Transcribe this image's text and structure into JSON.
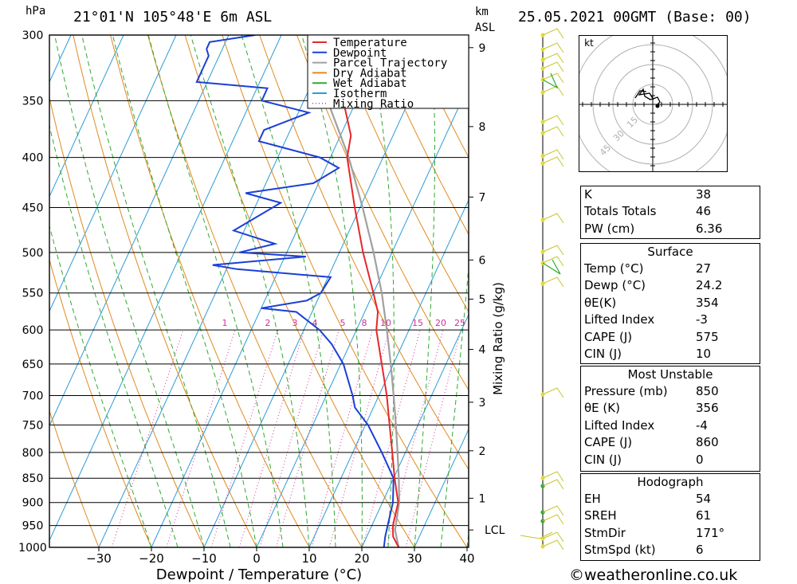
{
  "header": {
    "unit_hpa": "hPa",
    "location": "21°01'N 105°48'E 6m ASL",
    "unit_km": "km",
    "unit_asl": "ASL",
    "datetime": "25.05.2021 00GMT (Base: 00)"
  },
  "axes": {
    "xlabel": "Dewpoint / Temperature (°C)",
    "right_label": "Mixing Ratio (g/kg)",
    "pressure_ticks": [
      "300",
      "350",
      "400",
      "450",
      "500",
      "550",
      "600",
      "650",
      "700",
      "750",
      "800",
      "850",
      "900",
      "950",
      "1000"
    ],
    "temp_ticks": [
      "−30",
      "−20",
      "−10",
      "0",
      "10",
      "20",
      "30",
      "40"
    ],
    "km_ticks": [
      "9",
      "8",
      "7",
      "6",
      "5",
      "4",
      "3",
      "2",
      "1"
    ],
    "lcl_label": "LCL",
    "mixing_ratio_labels": [
      "1",
      "2",
      "3",
      "4",
      "5",
      "8",
      "10",
      "15",
      "20",
      "25"
    ]
  },
  "legend": [
    {
      "label": "Temperature",
      "color": "#e8262a",
      "style": "solid"
    },
    {
      "label": "Dewpoint",
      "color": "#1b3fd6",
      "style": "solid"
    },
    {
      "label": "Parcel Trajectory",
      "color": "#a0a0a0",
      "style": "solid"
    },
    {
      "label": "Dry Adiabat",
      "color": "#e08a1e",
      "style": "solid"
    },
    {
      "label": "Wet Adiabat",
      "color": "#2eaa2e",
      "style": "solid"
    },
    {
      "label": "Isotherm",
      "color": "#2b9bd8",
      "style": "solid"
    },
    {
      "label": "Mixing Ratio",
      "color": "#d0309a",
      "style": "dotted"
    }
  ],
  "chart_data": {
    "type": "skew-t",
    "pressure_range_hpa": [
      1000,
      300
    ],
    "temperature_range_c": [
      -40,
      40
    ],
    "temperature": [
      {
        "p": 1000,
        "t": 27.0
      },
      {
        "p": 975,
        "t": 25.0
      },
      {
        "p": 950,
        "t": 24.0
      },
      {
        "p": 925,
        "t": 23.5
      },
      {
        "p": 900,
        "t": 23.0
      },
      {
        "p": 850,
        "t": 20.2
      },
      {
        "p": 800,
        "t": 17.5
      },
      {
        "p": 750,
        "t": 14.6
      },
      {
        "p": 700,
        "t": 11.5
      },
      {
        "p": 650,
        "t": 7.8
      },
      {
        "p": 600,
        "t": 3.8
      },
      {
        "p": 575,
        "t": 2.5
      },
      {
        "p": 550,
        "t": 0.0
      },
      {
        "p": 500,
        "t": -5.5
      },
      {
        "p": 450,
        "t": -11.0
      },
      {
        "p": 400,
        "t": -16.8
      },
      {
        "p": 380,
        "t": -18.0
      },
      {
        "p": 350,
        "t": -22.5
      }
    ],
    "dewpoint": [
      {
        "p": 1000,
        "t": 24.2
      },
      {
        "p": 975,
        "t": 23.5
      },
      {
        "p": 950,
        "t": 23.0
      },
      {
        "p": 900,
        "t": 22.0
      },
      {
        "p": 850,
        "t": 20.0
      },
      {
        "p": 800,
        "t": 15.5
      },
      {
        "p": 750,
        "t": 10.5
      },
      {
        "p": 720,
        "t": 6.5
      },
      {
        "p": 700,
        "t": 5.0
      },
      {
        "p": 650,
        "t": 0.5
      },
      {
        "p": 620,
        "t": -3.5
      },
      {
        "p": 600,
        "t": -7.0
      },
      {
        "p": 575,
        "t": -13.0
      },
      {
        "p": 570,
        "t": -20.0
      },
      {
        "p": 560,
        "t": -12.0
      },
      {
        "p": 550,
        "t": -10.0
      },
      {
        "p": 530,
        "t": -9.5
      },
      {
        "p": 520,
        "t": -28.0
      },
      {
        "p": 515,
        "t": -33.0
      },
      {
        "p": 505,
        "t": -16.0
      },
      {
        "p": 500,
        "t": -29.0
      },
      {
        "p": 490,
        "t": -23.0
      },
      {
        "p": 475,
        "t": -32.0
      },
      {
        "p": 445,
        "t": -25.5
      },
      {
        "p": 435,
        "t": -33.0
      },
      {
        "p": 425,
        "t": -21.0
      },
      {
        "p": 410,
        "t": -17.5
      },
      {
        "p": 400,
        "t": -22.0
      },
      {
        "p": 385,
        "t": -35.0
      },
      {
        "p": 375,
        "t": -35.0
      },
      {
        "p": 360,
        "t": -28.0
      },
      {
        "p": 350,
        "t": -38.0
      },
      {
        "p": 340,
        "t": -38.0
      },
      {
        "p": 335,
        "t": -52.0
      },
      {
        "p": 315,
        "t": -52.0
      },
      {
        "p": 310,
        "t": -53.0
      },
      {
        "p": 305,
        "t": -53.0
      },
      {
        "p": 300,
        "t": -45.0
      }
    ],
    "parcel": [
      {
        "p": 1000,
        "t": 27.0
      },
      {
        "p": 960,
        "t": 24.8
      },
      {
        "p": 900,
        "t": 23.2
      },
      {
        "p": 850,
        "t": 21.0
      },
      {
        "p": 800,
        "t": 18.5
      },
      {
        "p": 750,
        "t": 15.8
      },
      {
        "p": 700,
        "t": 12.8
      },
      {
        "p": 650,
        "t": 9.5
      },
      {
        "p": 600,
        "t": 5.8
      },
      {
        "p": 550,
        "t": 1.6
      },
      {
        "p": 500,
        "t": -3.5
      },
      {
        "p": 450,
        "t": -9.5
      },
      {
        "p": 400,
        "t": -16.5
      },
      {
        "p": 350,
        "t": -25.5
      }
    ],
    "lcl_hpa": 960
  },
  "hodograph": {
    "units": "kt",
    "ring_labels": [
      "15",
      "30",
      "45"
    ]
  },
  "indices": {
    "rows1": [
      {
        "k": "K",
        "v": "38"
      },
      {
        "k": "Totals Totals",
        "v": "46"
      },
      {
        "k": "PW (cm)",
        "v": "6.36"
      }
    ],
    "surface_title": "Surface",
    "surface": [
      {
        "k": "Temp (°C)",
        "v": "27"
      },
      {
        "k": "Dewp (°C)",
        "v": "24.2"
      },
      {
        "k": "θE(K)",
        "v": "354"
      },
      {
        "k": "Lifted Index",
        "v": "-3"
      },
      {
        "k": "CAPE (J)",
        "v": "575"
      },
      {
        "k": "CIN (J)",
        "v": "10"
      }
    ],
    "mu_title": "Most Unstable",
    "most_unstable": [
      {
        "k": "Pressure (mb)",
        "v": "850"
      },
      {
        "k": "θE (K)",
        "v": "356"
      },
      {
        "k": "Lifted Index",
        "v": "-4"
      },
      {
        "k": "CAPE (J)",
        "v": "860"
      },
      {
        "k": "CIN (J)",
        "v": "0"
      }
    ],
    "hodo_title": "Hodograph",
    "hodo": [
      {
        "k": "EH",
        "v": "54"
      },
      {
        "k": "SREH",
        "v": "61"
      },
      {
        "k": "StmDir",
        "v": "171°"
      },
      {
        "k": "StmSpd (kt)",
        "v": "6"
      }
    ]
  },
  "footer": "©weatheronline.co.uk"
}
